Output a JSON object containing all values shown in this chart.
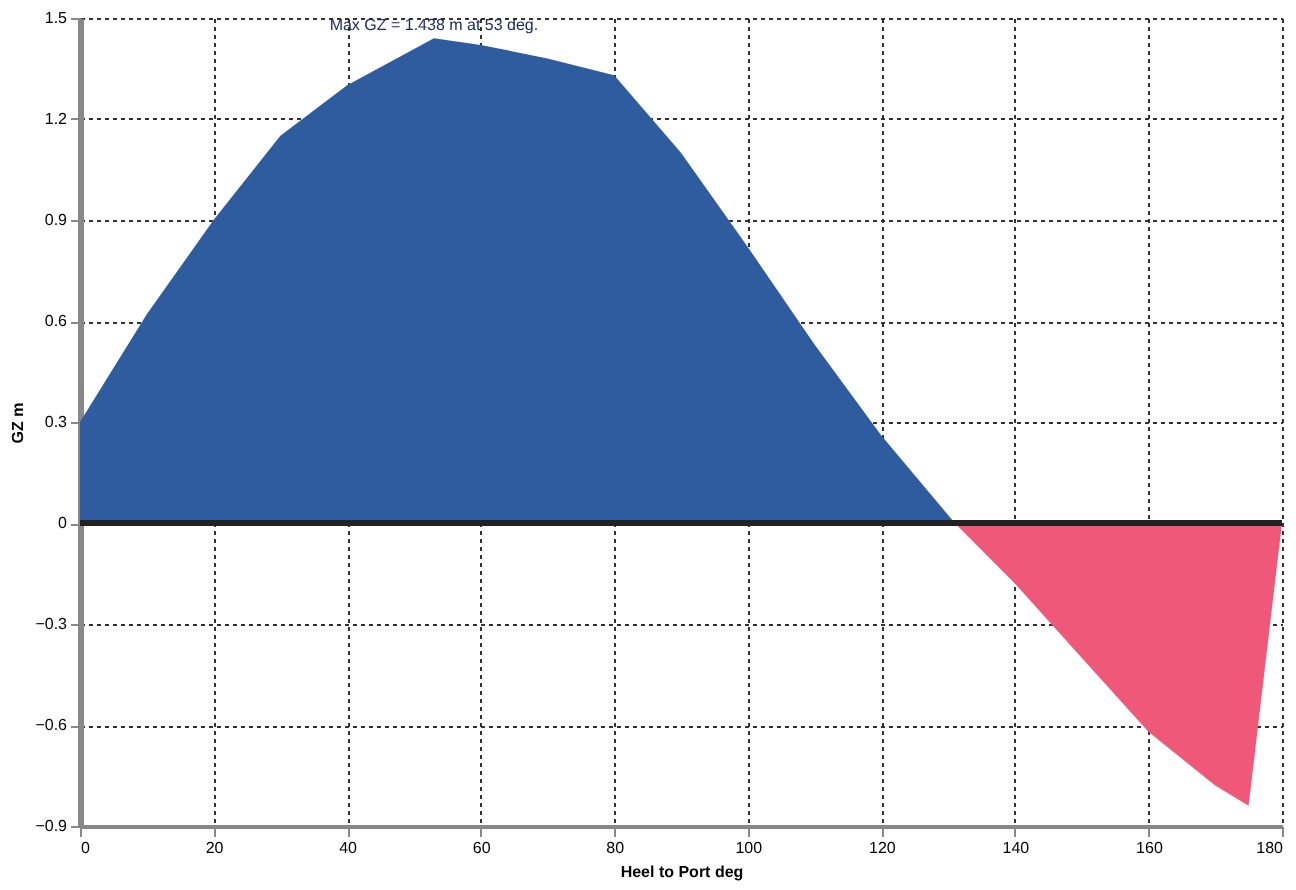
{
  "chart_data": {
    "type": "area",
    "xlabel": "Heel to Port   deg",
    "ylabel": "GZ  m",
    "annotations": [
      {
        "text": "Max GZ = 1.438 m at 53 deg.",
        "x": 53,
        "y": 1.44
      }
    ],
    "series": [
      {
        "color": "#2e5c9e",
        "x": [
          0,
          10,
          20,
          30,
          40,
          53,
          60,
          70,
          80,
          90,
          100,
          110,
          120,
          131
        ],
        "values": [
          0.3,
          0.62,
          0.9,
          1.15,
          1.3,
          1.44,
          1.42,
          1.38,
          1.33,
          1.1,
          0.82,
          0.53,
          0.26,
          0
        ]
      },
      {
        "color": "#f0587a",
        "x": [
          131,
          140,
          150,
          160,
          170,
          175,
          180
        ],
        "values": [
          0,
          -0.18,
          -0.4,
          -0.62,
          -0.78,
          -0.84,
          0
        ]
      }
    ],
    "xlim": [
      0,
      180
    ],
    "xticks": [
      0,
      20,
      40,
      60,
      80,
      100,
      120,
      140,
      160,
      180
    ],
    "ylim": [
      -0.9,
      1.5
    ],
    "yticks": [
      -0.9,
      -0.6,
      -0.3,
      0,
      0.3,
      0.6,
      0.9,
      1.2,
      1.5
    ],
    "ref_lines": [
      {
        "axis": "y",
        "value": 0,
        "color": "#222222"
      }
    ],
    "grid": true
  }
}
